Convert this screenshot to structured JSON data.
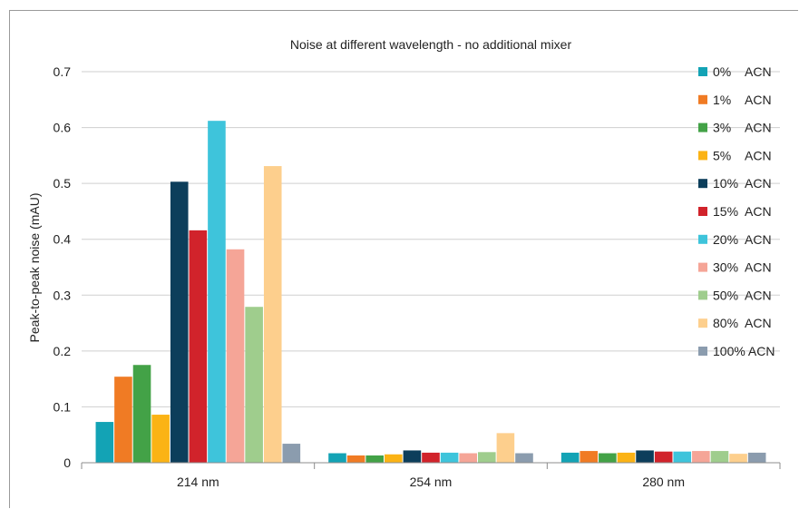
{
  "chart_data": {
    "type": "bar",
    "title": "Noise at different wavelength - no additional mixer",
    "xlabel": "",
    "ylabel": "Peak-to-peak noise (mAU)",
    "ylim": [
      0,
      0.7
    ],
    "yticks": [
      "0",
      "0.1",
      "0.2",
      "0.3",
      "0.4",
      "0.5",
      "0.6",
      "0.7"
    ],
    "grid": true,
    "legend_position": "right",
    "categories": [
      "214 nm",
      "254 nm",
      "280 nm"
    ],
    "series": [
      {
        "name": "0%    ACN",
        "color": "#13a3b5",
        "values": [
          0.073,
          0.017,
          0.018
        ]
      },
      {
        "name": "1%    ACN",
        "color": "#f07b24",
        "values": [
          0.154,
          0.013,
          0.021
        ]
      },
      {
        "name": "3%    ACN",
        "color": "#43a247",
        "values": [
          0.175,
          0.013,
          0.017
        ]
      },
      {
        "name": "5%    ACN",
        "color": "#fbb315",
        "values": [
          0.086,
          0.015,
          0.018
        ]
      },
      {
        "name": "10%  ACN",
        "color": "#0c3e5b",
        "values": [
          0.503,
          0.022,
          0.022
        ]
      },
      {
        "name": "15%  ACN",
        "color": "#d1232b",
        "values": [
          0.416,
          0.018,
          0.02
        ]
      },
      {
        "name": "20%  ACN",
        "color": "#3ec4db",
        "values": [
          0.612,
          0.018,
          0.02
        ]
      },
      {
        "name": "30%  ACN",
        "color": "#f5a597",
        "values": [
          0.382,
          0.017,
          0.021
        ]
      },
      {
        "name": "50%  ACN",
        "color": "#9fcd8d",
        "values": [
          0.279,
          0.019,
          0.021
        ]
      },
      {
        "name": "80%  ACN",
        "color": "#fdcf8d",
        "values": [
          0.531,
          0.053,
          0.016
        ]
      },
      {
        "name": "100% ACN",
        "color": "#8b9cae",
        "values": [
          0.034,
          0.017,
          0.018
        ]
      }
    ]
  }
}
